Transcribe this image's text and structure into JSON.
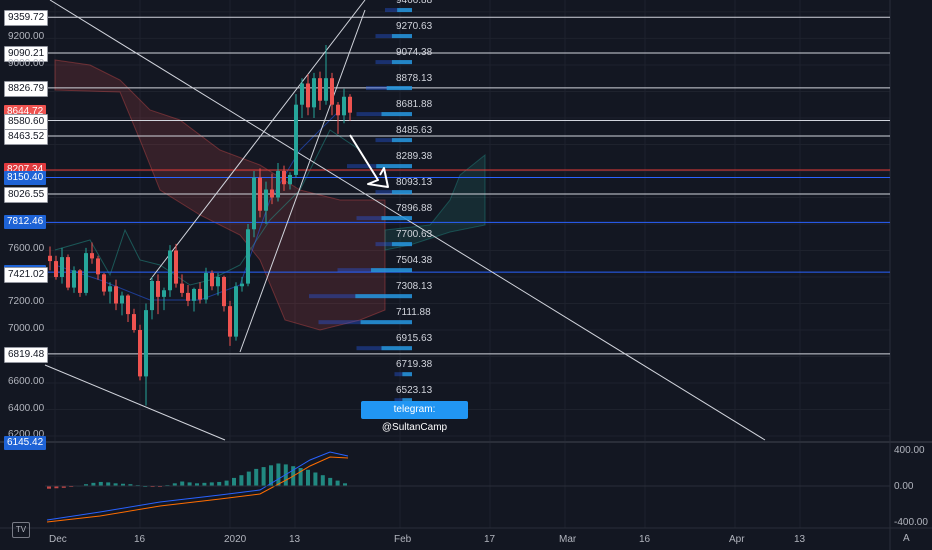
{
  "price_labels": [
    {
      "text": "9359.72",
      "price": 9359.72,
      "style": "white"
    },
    {
      "text": "9200.00",
      "price": 9200.0,
      "style": "tick"
    },
    {
      "text": "9090.21",
      "price": 9090.21,
      "style": "white"
    },
    {
      "text": "9000.00",
      "price": 9000.0,
      "style": "tick"
    },
    {
      "text": "8826.79",
      "price": 8826.79,
      "style": "white"
    },
    {
      "text": "8644.72",
      "price": 8644.72,
      "style": "pink"
    },
    {
      "text": "8580.60",
      "price": 8580.6,
      "style": "white"
    },
    {
      "text": "8463.52",
      "price": 8463.52,
      "style": "white"
    },
    {
      "text": "8207.34",
      "price": 8207.34,
      "style": "red"
    },
    {
      "text": "8150.40",
      "price": 8150.4,
      "style": "blue"
    },
    {
      "text": "8026.55",
      "price": 8026.55,
      "style": "white"
    },
    {
      "text": "7812.46",
      "price": 7812.46,
      "style": "blue"
    },
    {
      "text": "7600.00",
      "price": 7600.0,
      "style": "tick"
    },
    {
      "text": "7436.49",
      "price": 7436.49,
      "style": "blue"
    },
    {
      "text": "7421.02",
      "price": 7421.02,
      "style": "white"
    },
    {
      "text": "7200.00",
      "price": 7200.0,
      "style": "tick"
    },
    {
      "text": "7000.00",
      "price": 7000.0,
      "style": "tick"
    },
    {
      "text": "6819.48",
      "price": 6819.48,
      "style": "white"
    },
    {
      "text": "6600.00",
      "price": 6600.0,
      "style": "tick"
    },
    {
      "text": "6400.00",
      "price": 6400.0,
      "style": "tick"
    },
    {
      "text": "6200.00",
      "price": 6200.0,
      "style": "tick"
    },
    {
      "text": "6145.42",
      "price": 6145.42,
      "style": "blue"
    }
  ],
  "volume_profile_labels": [
    "9466.88",
    "9270.63",
    "9074.38",
    "8878.13",
    "8681.88",
    "8485.63",
    "8289.38",
    "8093.13",
    "7896.88",
    "7700.63",
    "7504.38",
    "7308.13",
    "7111.88",
    "6915.63",
    "6719.38",
    "6523.13"
  ],
  "volume_profile_values": [
    2,
    3,
    3,
    4,
    5,
    3,
    6,
    3,
    5,
    3,
    7,
    10,
    9,
    5,
    1,
    1
  ],
  "horizontal_levels": [
    9359.72,
    9090.21,
    8826.79,
    8580.6,
    8463.52,
    8207.34,
    8150.4,
    8026.55,
    7812.46,
    7436.49,
    6819.48
  ],
  "x_axis_labels": [
    "Dec",
    "16",
    "2020",
    "13",
    "Feb",
    "17",
    "Mar",
    "16",
    "Apr",
    "13"
  ],
  "oscillator_labels": [
    "400.00",
    "0.00",
    "-400.00"
  ],
  "annotation": {
    "text": "telegram: @SultanCamp"
  },
  "logo_text": "TV",
  "corner_button": "A",
  "colors": {
    "up": "#26a69a",
    "down": "#ef5350",
    "bg": "#131722",
    "grid": "#1e222d",
    "level": "#d1d4dc",
    "accent": "#2196f3"
  },
  "chart_data": {
    "type": "candlestick",
    "y_range": [
      6170,
      9490
    ],
    "candles": [
      {
        "o": 7560,
        "h": 7630,
        "l": 7450,
        "c": 7520
      },
      {
        "o": 7520,
        "h": 7560,
        "l": 7380,
        "c": 7400
      },
      {
        "o": 7400,
        "h": 7620,
        "l": 7350,
        "c": 7550
      },
      {
        "o": 7550,
        "h": 7570,
        "l": 7300,
        "c": 7320
      },
      {
        "o": 7320,
        "h": 7480,
        "l": 7280,
        "c": 7450
      },
      {
        "o": 7450,
        "h": 7460,
        "l": 7250,
        "c": 7280
      },
      {
        "o": 7280,
        "h": 7620,
        "l": 7260,
        "c": 7580
      },
      {
        "o": 7580,
        "h": 7660,
        "l": 7500,
        "c": 7540
      },
      {
        "o": 7540,
        "h": 7560,
        "l": 7380,
        "c": 7420
      },
      {
        "o": 7420,
        "h": 7430,
        "l": 7260,
        "c": 7290
      },
      {
        "o": 7290,
        "h": 7360,
        "l": 7200,
        "c": 7330
      },
      {
        "o": 7330,
        "h": 7380,
        "l": 7150,
        "c": 7200
      },
      {
        "o": 7200,
        "h": 7290,
        "l": 7110,
        "c": 7260
      },
      {
        "o": 7260,
        "h": 7270,
        "l": 7060,
        "c": 7120
      },
      {
        "o": 7120,
        "h": 7160,
        "l": 6980,
        "c": 7000
      },
      {
        "o": 7000,
        "h": 7040,
        "l": 6620,
        "c": 6650
      },
      {
        "o": 6650,
        "h": 7200,
        "l": 6430,
        "c": 7150
      },
      {
        "o": 7150,
        "h": 7400,
        "l": 7080,
        "c": 7370
      },
      {
        "o": 7370,
        "h": 7420,
        "l": 7120,
        "c": 7250
      },
      {
        "o": 7250,
        "h": 7320,
        "l": 7150,
        "c": 7300
      },
      {
        "o": 7300,
        "h": 7640,
        "l": 7250,
        "c": 7600
      },
      {
        "o": 7600,
        "h": 7650,
        "l": 7320,
        "c": 7350
      },
      {
        "o": 7350,
        "h": 7420,
        "l": 7250,
        "c": 7280
      },
      {
        "o": 7280,
        "h": 7340,
        "l": 7180,
        "c": 7220
      },
      {
        "o": 7220,
        "h": 7320,
        "l": 7140,
        "c": 7310
      },
      {
        "o": 7310,
        "h": 7360,
        "l": 7200,
        "c": 7230
      },
      {
        "o": 7230,
        "h": 7470,
        "l": 7200,
        "c": 7430
      },
      {
        "o": 7430,
        "h": 7450,
        "l": 7300,
        "c": 7330
      },
      {
        "o": 7330,
        "h": 7430,
        "l": 7260,
        "c": 7400
      },
      {
        "o": 7400,
        "h": 7410,
        "l": 7140,
        "c": 7180
      },
      {
        "o": 7180,
        "h": 7220,
        "l": 6880,
        "c": 6950
      },
      {
        "o": 6950,
        "h": 7360,
        "l": 6920,
        "c": 7330
      },
      {
        "o": 7330,
        "h": 7400,
        "l": 7290,
        "c": 7350
      },
      {
        "o": 7350,
        "h": 7800,
        "l": 7330,
        "c": 7760
      },
      {
        "o": 7760,
        "h": 8200,
        "l": 7700,
        "c": 8150
      },
      {
        "o": 8150,
        "h": 8220,
        "l": 7850,
        "c": 7900
      },
      {
        "o": 7900,
        "h": 8120,
        "l": 7800,
        "c": 8060
      },
      {
        "o": 8060,
        "h": 8180,
        "l": 7950,
        "c": 8000
      },
      {
        "o": 8000,
        "h": 8260,
        "l": 7970,
        "c": 8200
      },
      {
        "o": 8200,
        "h": 8240,
        "l": 8050,
        "c": 8100
      },
      {
        "o": 8100,
        "h": 8190,
        "l": 8060,
        "c": 8170
      },
      {
        "o": 8170,
        "h": 8780,
        "l": 8150,
        "c": 8700
      },
      {
        "o": 8700,
        "h": 8900,
        "l": 8600,
        "c": 8860
      },
      {
        "o": 8860,
        "h": 8930,
        "l": 8620,
        "c": 8680
      },
      {
        "o": 8680,
        "h": 8940,
        "l": 8600,
        "c": 8900
      },
      {
        "o": 8900,
        "h": 8950,
        "l": 8660,
        "c": 8730
      },
      {
        "o": 8730,
        "h": 9150,
        "l": 8700,
        "c": 8900
      },
      {
        "o": 8900,
        "h": 8940,
        "l": 8620,
        "c": 8700
      },
      {
        "o": 8700,
        "h": 8720,
        "l": 8480,
        "c": 8620
      },
      {
        "o": 8620,
        "h": 8820,
        "l": 8560,
        "c": 8760
      },
      {
        "o": 8760,
        "h": 8780,
        "l": 8580,
        "c": 8640
      }
    ]
  }
}
